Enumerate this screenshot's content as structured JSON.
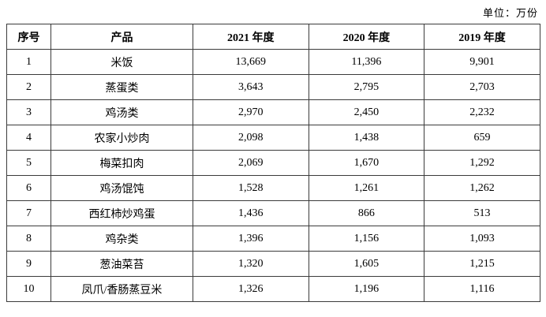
{
  "page": {
    "unit_label": "单位：万份"
  },
  "table": {
    "headers": [
      "序号",
      "产品",
      "2021 年度",
      "2020 年度",
      "2019 年度"
    ],
    "rows": [
      {
        "no": "1",
        "product": "米饭",
        "y2021": "13,669",
        "y2020": "11,396",
        "y2019": "9,901"
      },
      {
        "no": "2",
        "product": "蒸蛋类",
        "y2021": "3,643",
        "y2020": "2,795",
        "y2019": "2,703"
      },
      {
        "no": "3",
        "product": "鸡汤类",
        "y2021": "2,970",
        "y2020": "2,450",
        "y2019": "2,232"
      },
      {
        "no": "4",
        "product": "农家小炒肉",
        "y2021": "2,098",
        "y2020": "1,438",
        "y2019": "659"
      },
      {
        "no": "5",
        "product": "梅菜扣肉",
        "y2021": "2,069",
        "y2020": "1,670",
        "y2019": "1,292"
      },
      {
        "no": "6",
        "product": "鸡汤馄饨",
        "y2021": "1,528",
        "y2020": "1,261",
        "y2019": "1,262"
      },
      {
        "no": "7",
        "product": "西红柿炒鸡蛋",
        "y2021": "1,436",
        "y2020": "866",
        "y2019": "513"
      },
      {
        "no": "8",
        "product": "鸡杂类",
        "y2021": "1,396",
        "y2020": "1,156",
        "y2019": "1,093"
      },
      {
        "no": "9",
        "product": "葱油菜苔",
        "y2021": "1,320",
        "y2020": "1,605",
        "y2019": "1,215"
      },
      {
        "no": "10",
        "product": "凤爪/香肠蒸豆米",
        "y2021": "1,326",
        "y2020": "1,196",
        "y2019": "1,116"
      }
    ]
  }
}
